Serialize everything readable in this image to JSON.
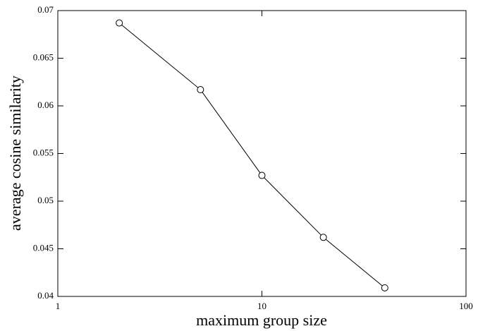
{
  "chart_data": {
    "type": "line",
    "x_label": "maximum group size",
    "y_label": "average cosine similarity",
    "x": [
      2,
      5,
      10,
      20,
      40
    ],
    "series": [
      {
        "color": "#000000",
        "values": [
          0.0687,
          0.0617,
          0.0527,
          0.0462,
          0.0409
        ]
      }
    ],
    "xscale": "log",
    "xlim": [
      1,
      100
    ],
    "xticks": [
      1,
      10,
      100
    ],
    "ylim": [
      0.04,
      0.07
    ],
    "yticks": [
      0.04,
      0.045,
      0.05,
      0.055,
      0.06,
      0.065,
      0.07
    ],
    "grid": false
  }
}
